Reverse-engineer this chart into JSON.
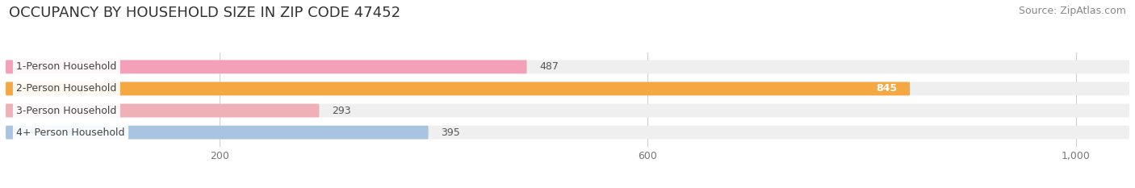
{
  "title": "OCCUPANCY BY HOUSEHOLD SIZE IN ZIP CODE 47452",
  "source": "Source: ZipAtlas.com",
  "categories": [
    "1-Person Household",
    "2-Person Household",
    "3-Person Household",
    "4+ Person Household"
  ],
  "values": [
    487,
    845,
    293,
    395
  ],
  "bar_colors": [
    "#f4a0b8",
    "#f5a742",
    "#f0b0b8",
    "#a8c4e0"
  ],
  "label_colors": [
    "#555555",
    "#ffffff",
    "#555555",
    "#555555"
  ],
  "xlim": [
    0,
    1050
  ],
  "xticks": [
    200,
    600,
    1000
  ],
  "background_color": "#ffffff",
  "bar_background_color": "#efefef",
  "title_fontsize": 13,
  "source_fontsize": 9,
  "bar_height": 0.62,
  "label_fontsize": 9,
  "value_fontsize": 9
}
